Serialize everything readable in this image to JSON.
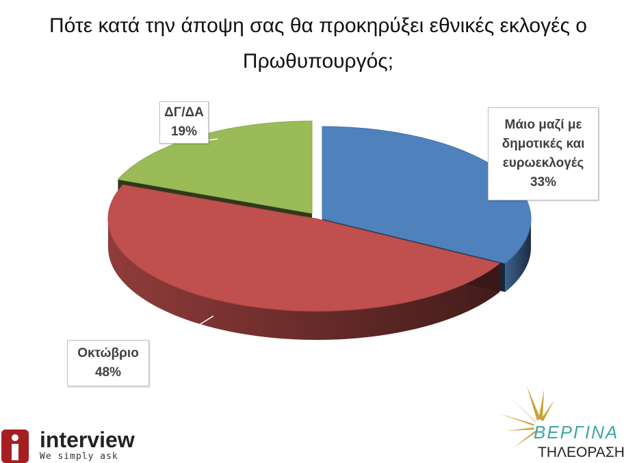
{
  "chart_data": {
    "type": "pie",
    "title": "Πότε κατά την άποψη σας θα προκηρύξει εθνικές εκλογές ο Πρωθυπουργός;",
    "categories": [
      "Μάιο μαζί με δημοτικές και ευρωεκλογές",
      "Οκτώβριο",
      "ΔΓ/ΔΑ"
    ],
    "values": [
      33,
      48,
      19
    ],
    "value_labels": [
      "33%",
      "48%",
      "19%"
    ],
    "colors": [
      "#4f81bd",
      "#c0504d",
      "#9bbb59"
    ]
  },
  "logos": {
    "interview": {
      "name": "interview",
      "tagline": "We simply ask"
    },
    "vergina": {
      "name": "ΒΕΡΓΙΝΑ",
      "subtitle": "ΤΗΛΕΟΡΑΣΗ"
    }
  }
}
